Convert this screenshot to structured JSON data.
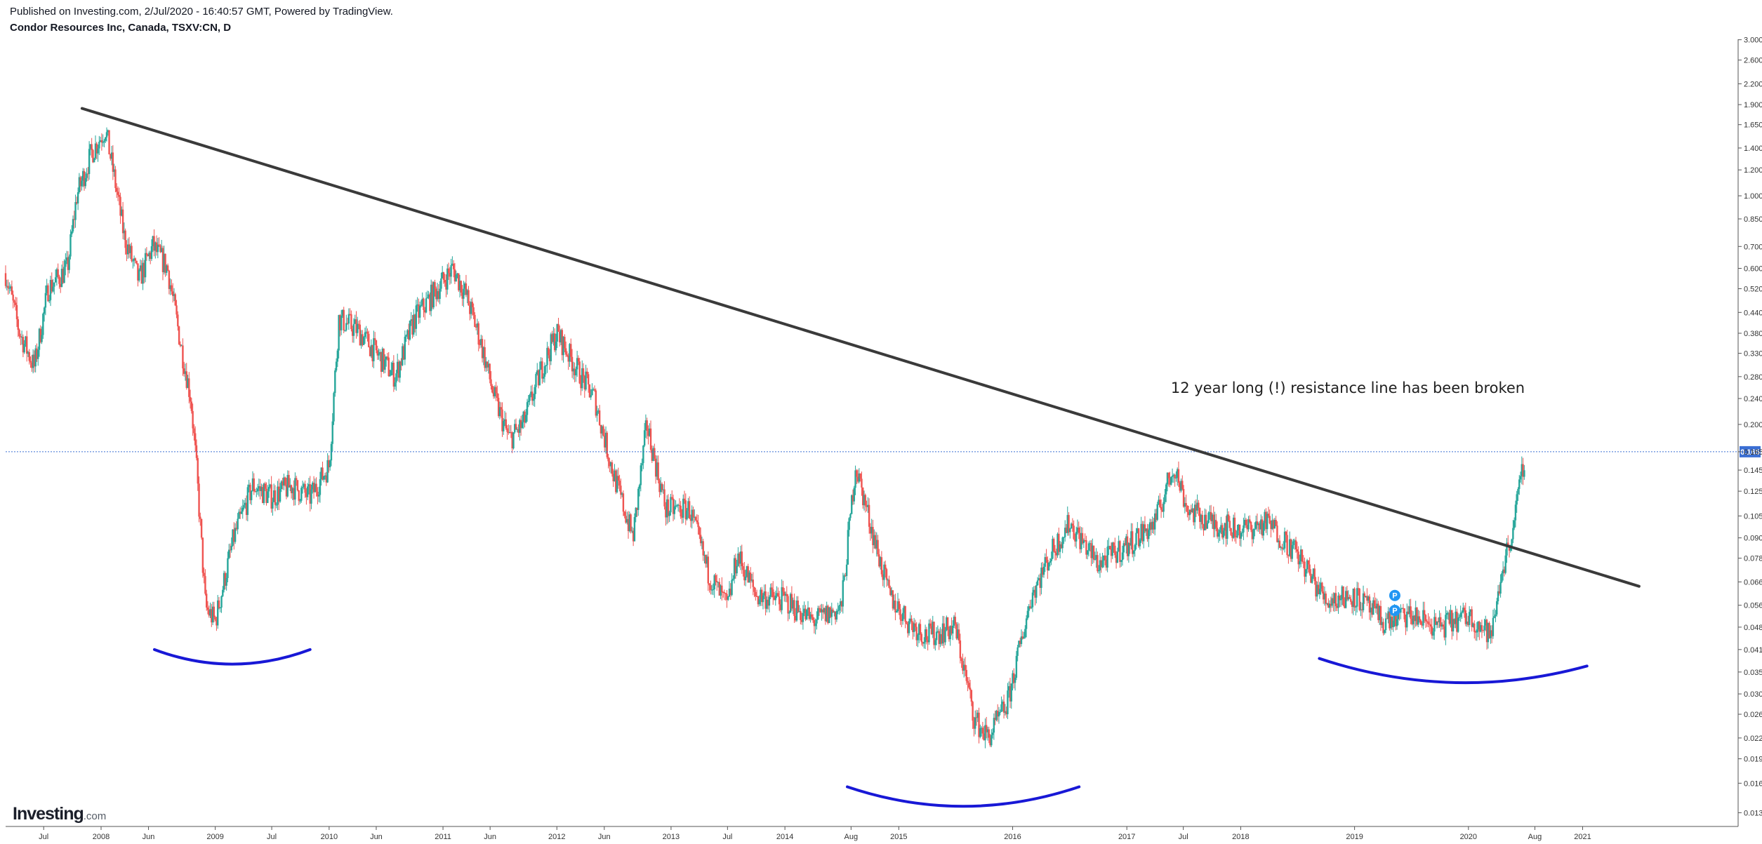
{
  "header": {
    "published": "Published on Investing.com, 2/Jul/2020 - 16:40:57 GMT, Powered by TradingView.",
    "symbol": "Condor Resources Inc, Canada, TSXV:CN, D"
  },
  "logo": {
    "brand": "Investing",
    "tld": ".com"
  },
  "colors": {
    "up": "#26a69a",
    "down": "#ef5350",
    "trendline": "#3a3a3a",
    "arc": "#1818d6",
    "price_line": "#3b6fd4",
    "price_label_bg": "#3b6fd4",
    "marker": "#2196f3",
    "axis": "#555555"
  },
  "chart_data": {
    "type": "line",
    "title": "",
    "series_kind": "candlestick",
    "scale": "log",
    "ylim": [
      0.0118,
      3.1
    ],
    "xlim": [
      "2007-03-01",
      "2022-05-01"
    ],
    "y_ticks": [
      "3.000",
      "2.600",
      "2.200",
      "1.900",
      "1.650",
      "1.400",
      "1.200",
      "1.000",
      "0.850",
      "0.700",
      "0.600",
      "0.520",
      "0.440",
      "0.380",
      "0.330",
      "0.280",
      "0.240",
      "0.200",
      "0.165",
      "0.145",
      "0.125",
      "0.105",
      "0.090",
      "0.078",
      "0.066",
      "0.056",
      "0.048",
      "0.041",
      "0.035",
      "0.030",
      "0.026",
      "0.022",
      "0.019",
      "0.016",
      "0.013"
    ],
    "x_ticks": [
      {
        "label": "Jul",
        "date": "2007-07-01"
      },
      {
        "label": "2008",
        "date": "2008-01-01"
      },
      {
        "label": "Jun",
        "date": "2008-06-01"
      },
      {
        "label": "2009",
        "date": "2009-01-01"
      },
      {
        "label": "Jul",
        "date": "2009-07-01"
      },
      {
        "label": "2010",
        "date": "2010-01-01"
      },
      {
        "label": "Jun",
        "date": "2010-06-01"
      },
      {
        "label": "2011",
        "date": "2011-01-01"
      },
      {
        "label": "Jun",
        "date": "2011-06-01"
      },
      {
        "label": "2012",
        "date": "2012-01-01"
      },
      {
        "label": "Jun",
        "date": "2012-06-01"
      },
      {
        "label": "2013",
        "date": "2013-01-01"
      },
      {
        "label": "Jul",
        "date": "2013-07-01"
      },
      {
        "label": "2014",
        "date": "2014-01-01"
      },
      {
        "label": "Aug",
        "date": "2014-08-01"
      },
      {
        "label": "2015",
        "date": "2015-01-01"
      },
      {
        "label": "2016",
        "date": "2016-01-01"
      },
      {
        "label": "2017",
        "date": "2017-01-01"
      },
      {
        "label": "Jul",
        "date": "2017-07-01"
      },
      {
        "label": "2018",
        "date": "2018-01-01"
      },
      {
        "label": "2019",
        "date": "2019-01-01"
      },
      {
        "label": "2020",
        "date": "2020-01-01"
      },
      {
        "label": "Aug",
        "date": "2020-08-01"
      },
      {
        "label": "2021",
        "date": "2021-01-01"
      }
    ],
    "current_price": "0.165",
    "price_path": [
      [
        "2007-03-01",
        0.58
      ],
      [
        "2007-04-15",
        0.38
      ],
      [
        "2007-06-01",
        0.3
      ],
      [
        "2007-07-15",
        0.52
      ],
      [
        "2007-09-15",
        0.6
      ],
      [
        "2007-10-15",
        1.0
      ],
      [
        "2007-12-01",
        1.35
      ],
      [
        "2008-01-15",
        1.6
      ],
      [
        "2008-02-15",
        1.1
      ],
      [
        "2008-03-15",
        0.75
      ],
      [
        "2008-05-01",
        0.55
      ],
      [
        "2008-06-15",
        0.7
      ],
      [
        "2008-08-01",
        0.6
      ],
      [
        "2008-09-15",
        0.34
      ],
      [
        "2008-10-15",
        0.24
      ],
      [
        "2008-11-01",
        0.15
      ],
      [
        "2008-12-01",
        0.055
      ],
      [
        "2009-01-01",
        0.05
      ],
      [
        "2009-03-01",
        0.09
      ],
      [
        "2009-05-01",
        0.13
      ],
      [
        "2009-07-01",
        0.12
      ],
      [
        "2009-09-01",
        0.13
      ],
      [
        "2009-11-01",
        0.12
      ],
      [
        "2010-01-01",
        0.15
      ],
      [
        "2010-02-01",
        0.42
      ],
      [
        "2010-04-01",
        0.39
      ],
      [
        "2010-06-01",
        0.33
      ],
      [
        "2010-08-01",
        0.28
      ],
      [
        "2010-10-01",
        0.42
      ],
      [
        "2010-12-01",
        0.5
      ],
      [
        "2011-02-01",
        0.6
      ],
      [
        "2011-03-15",
        0.5
      ],
      [
        "2011-05-01",
        0.36
      ],
      [
        "2011-06-15",
        0.24
      ],
      [
        "2011-08-01",
        0.18
      ],
      [
        "2011-09-15",
        0.2
      ],
      [
        "2011-11-15",
        0.3
      ],
      [
        "2012-01-01",
        0.38
      ],
      [
        "2012-03-01",
        0.3
      ],
      [
        "2012-05-01",
        0.24
      ],
      [
        "2012-07-01",
        0.14
      ],
      [
        "2012-09-01",
        0.09
      ],
      [
        "2012-10-15",
        0.2
      ],
      [
        "2012-12-15",
        0.11
      ],
      [
        "2013-03-01",
        0.11
      ],
      [
        "2013-05-01",
        0.07
      ],
      [
        "2013-07-01",
        0.055
      ],
      [
        "2013-08-01",
        0.08
      ],
      [
        "2013-10-01",
        0.06
      ],
      [
        "2014-01-01",
        0.058
      ],
      [
        "2014-04-01",
        0.05
      ],
      [
        "2014-07-01",
        0.055
      ],
      [
        "2014-08-15",
        0.15
      ],
      [
        "2014-10-01",
        0.1
      ],
      [
        "2014-12-01",
        0.06
      ],
      [
        "2015-02-01",
        0.05
      ],
      [
        "2015-04-01",
        0.045
      ],
      [
        "2015-07-01",
        0.048
      ],
      [
        "2015-09-01",
        0.025
      ],
      [
        "2015-10-15",
        0.022
      ],
      [
        "2015-12-15",
        0.028
      ],
      [
        "2016-03-01",
        0.06
      ],
      [
        "2016-05-01",
        0.08
      ],
      [
        "2016-07-01",
        0.1
      ],
      [
        "2016-10-01",
        0.075
      ],
      [
        "2017-01-01",
        0.085
      ],
      [
        "2017-04-01",
        0.1
      ],
      [
        "2017-06-01",
        0.15
      ],
      [
        "2017-07-15",
        0.11
      ],
      [
        "2017-10-01",
        0.1
      ],
      [
        "2018-01-01",
        0.095
      ],
      [
        "2018-04-01",
        0.1
      ],
      [
        "2018-07-01",
        0.08
      ],
      [
        "2018-10-01",
        0.058
      ],
      [
        "2019-01-01",
        0.06
      ],
      [
        "2019-04-01",
        0.05
      ],
      [
        "2019-07-01",
        0.052
      ],
      [
        "2019-10-01",
        0.048
      ],
      [
        "2020-01-01",
        0.052
      ],
      [
        "2020-03-15",
        0.045
      ],
      [
        "2020-04-15",
        0.07
      ],
      [
        "2020-05-15",
        0.09
      ],
      [
        "2020-06-15",
        0.13
      ],
      [
        "2020-07-01",
        0.165
      ]
    ],
    "annotations": {
      "text": "12 year long (!) resistance line has been broken",
      "text_at": {
        "date": "2017-05-22",
        "price": 0.25
      },
      "trendline": {
        "from": {
          "date": "2007-11-01",
          "price": 1.85
        },
        "to": {
          "date": "2021-07-01",
          "price": 0.064
        }
      },
      "arcs": [
        {
          "from": {
            "date": "2008-06-20",
            "price": 0.041
          },
          "to": {
            "date": "2009-11-01",
            "price": 0.041
          },
          "bottom": 0.037
        },
        {
          "from": {
            "date": "2014-07-20",
            "price": 0.0156
          },
          "to": {
            "date": "2016-08-01",
            "price": 0.0156
          },
          "bottom": 0.0136
        },
        {
          "from": {
            "date": "2018-09-10",
            "price": 0.0385
          },
          "to": {
            "date": "2021-01-15",
            "price": 0.0365
          },
          "bottom": 0.0325
        }
      ],
      "markers": [
        {
          "label": "P",
          "date": "2019-05-10",
          "price": 0.06
        },
        {
          "label": "P",
          "date": "2019-05-10",
          "price": 0.054
        }
      ]
    }
  }
}
